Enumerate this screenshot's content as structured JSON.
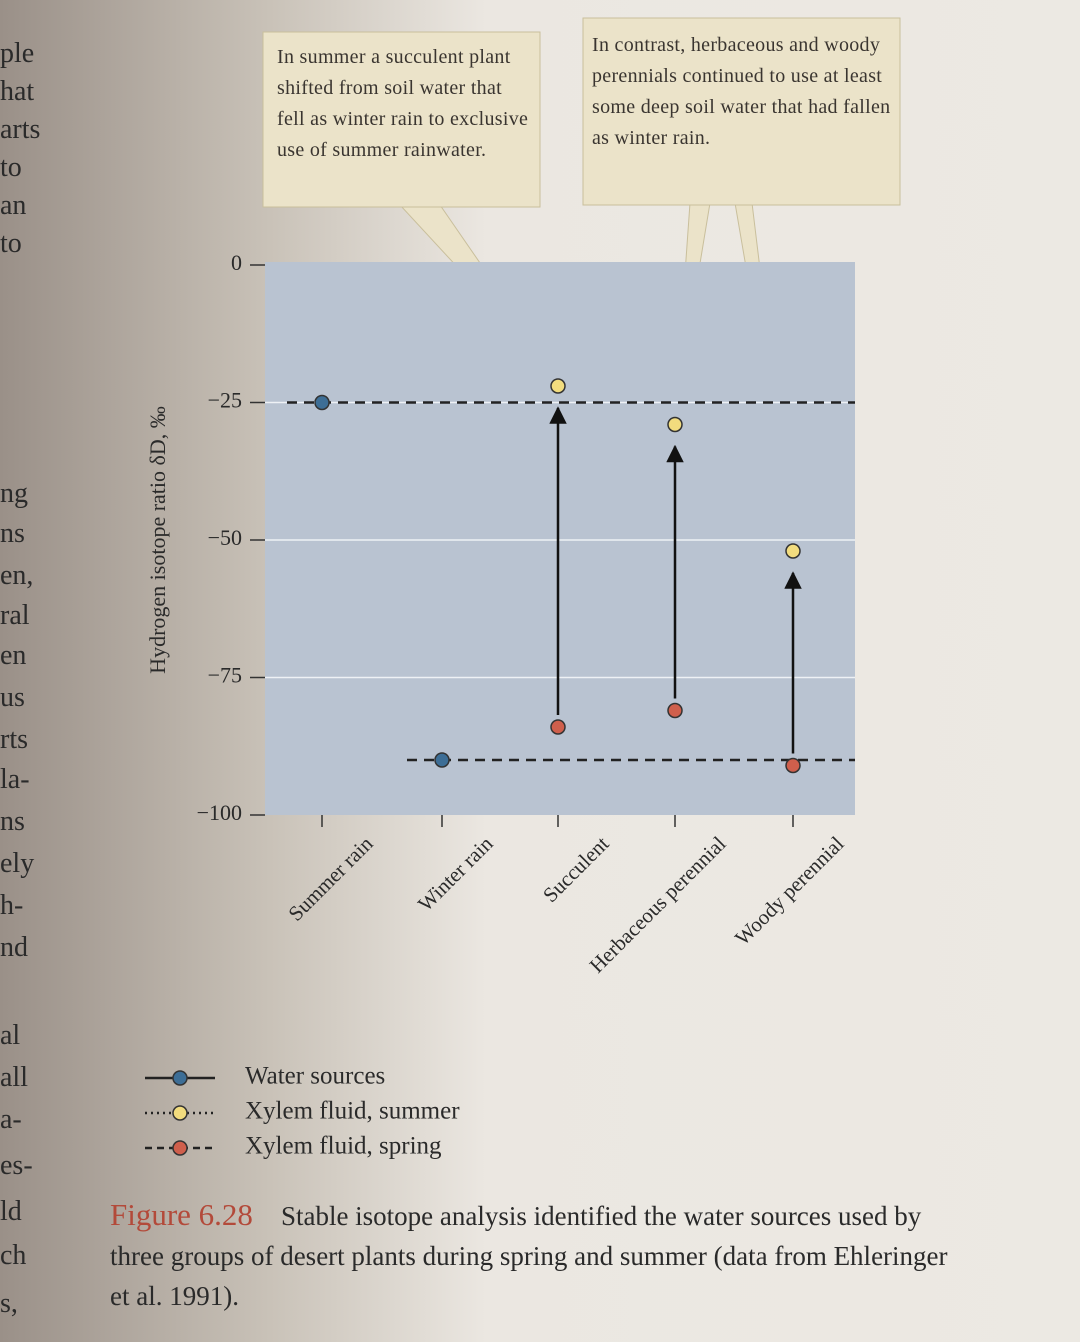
{
  "chart_data": {
    "type": "dot",
    "y_label": "Hydrogen isotope ratio δD, ‰",
    "categories": [
      "Summer rain",
      "Winter rain",
      "Succulent",
      "Herbaceous perennial",
      "Woody perennial"
    ],
    "series": [
      {
        "name": "Water sources",
        "color": "#3d6e96",
        "line_style": "solid",
        "values": [
          -25,
          -90,
          null,
          null,
          null
        ]
      },
      {
        "name": "Xylem fluid, summer",
        "color": "#f2dc7e",
        "line_style": "dotted",
        "values": [
          null,
          null,
          -22,
          -29,
          -52
        ]
      },
      {
        "name": "Xylem fluid, spring",
        "color": "#cf5f4c",
        "line_style": "dashed",
        "values": [
          null,
          null,
          -84,
          -81,
          -91
        ]
      }
    ],
    "ylim": [
      -100,
      0
    ],
    "yticks": [
      0,
      {
        "value": -25,
        "label": "−25"
      },
      {
        "value": -50,
        "label": "−50"
      },
      {
        "value": -75,
        "label": "−75"
      },
      {
        "value": -100,
        "label": "−100"
      }
    ],
    "grid": true,
    "annotations": [
      "In summer a succulent plant shifted from soil water that fell as winter rain to exclusive use of summer rainwater.",
      "In contrast, herbaceous and woody perennials continued to use at least some deep soil water that had fallen as winter rain."
    ]
  },
  "caption": {
    "label": "Figure 6.28",
    "text": "Stable isotope analysis identified the water sources used by three groups of desert plants during spring and summer (data from Ehleringer et al. 1991)."
  },
  "margin_fragments": [
    "ple",
    "hat",
    "arts",
    "to",
    "an",
    "to",
    "ng",
    "ns",
    "en,",
    "ral",
    "en",
    "us",
    "rts",
    "la-",
    "ns",
    "ely",
    "h-",
    "nd",
    "al",
    "all",
    "a-",
    "es-",
    "ld",
    "ch",
    "s,"
  ]
}
